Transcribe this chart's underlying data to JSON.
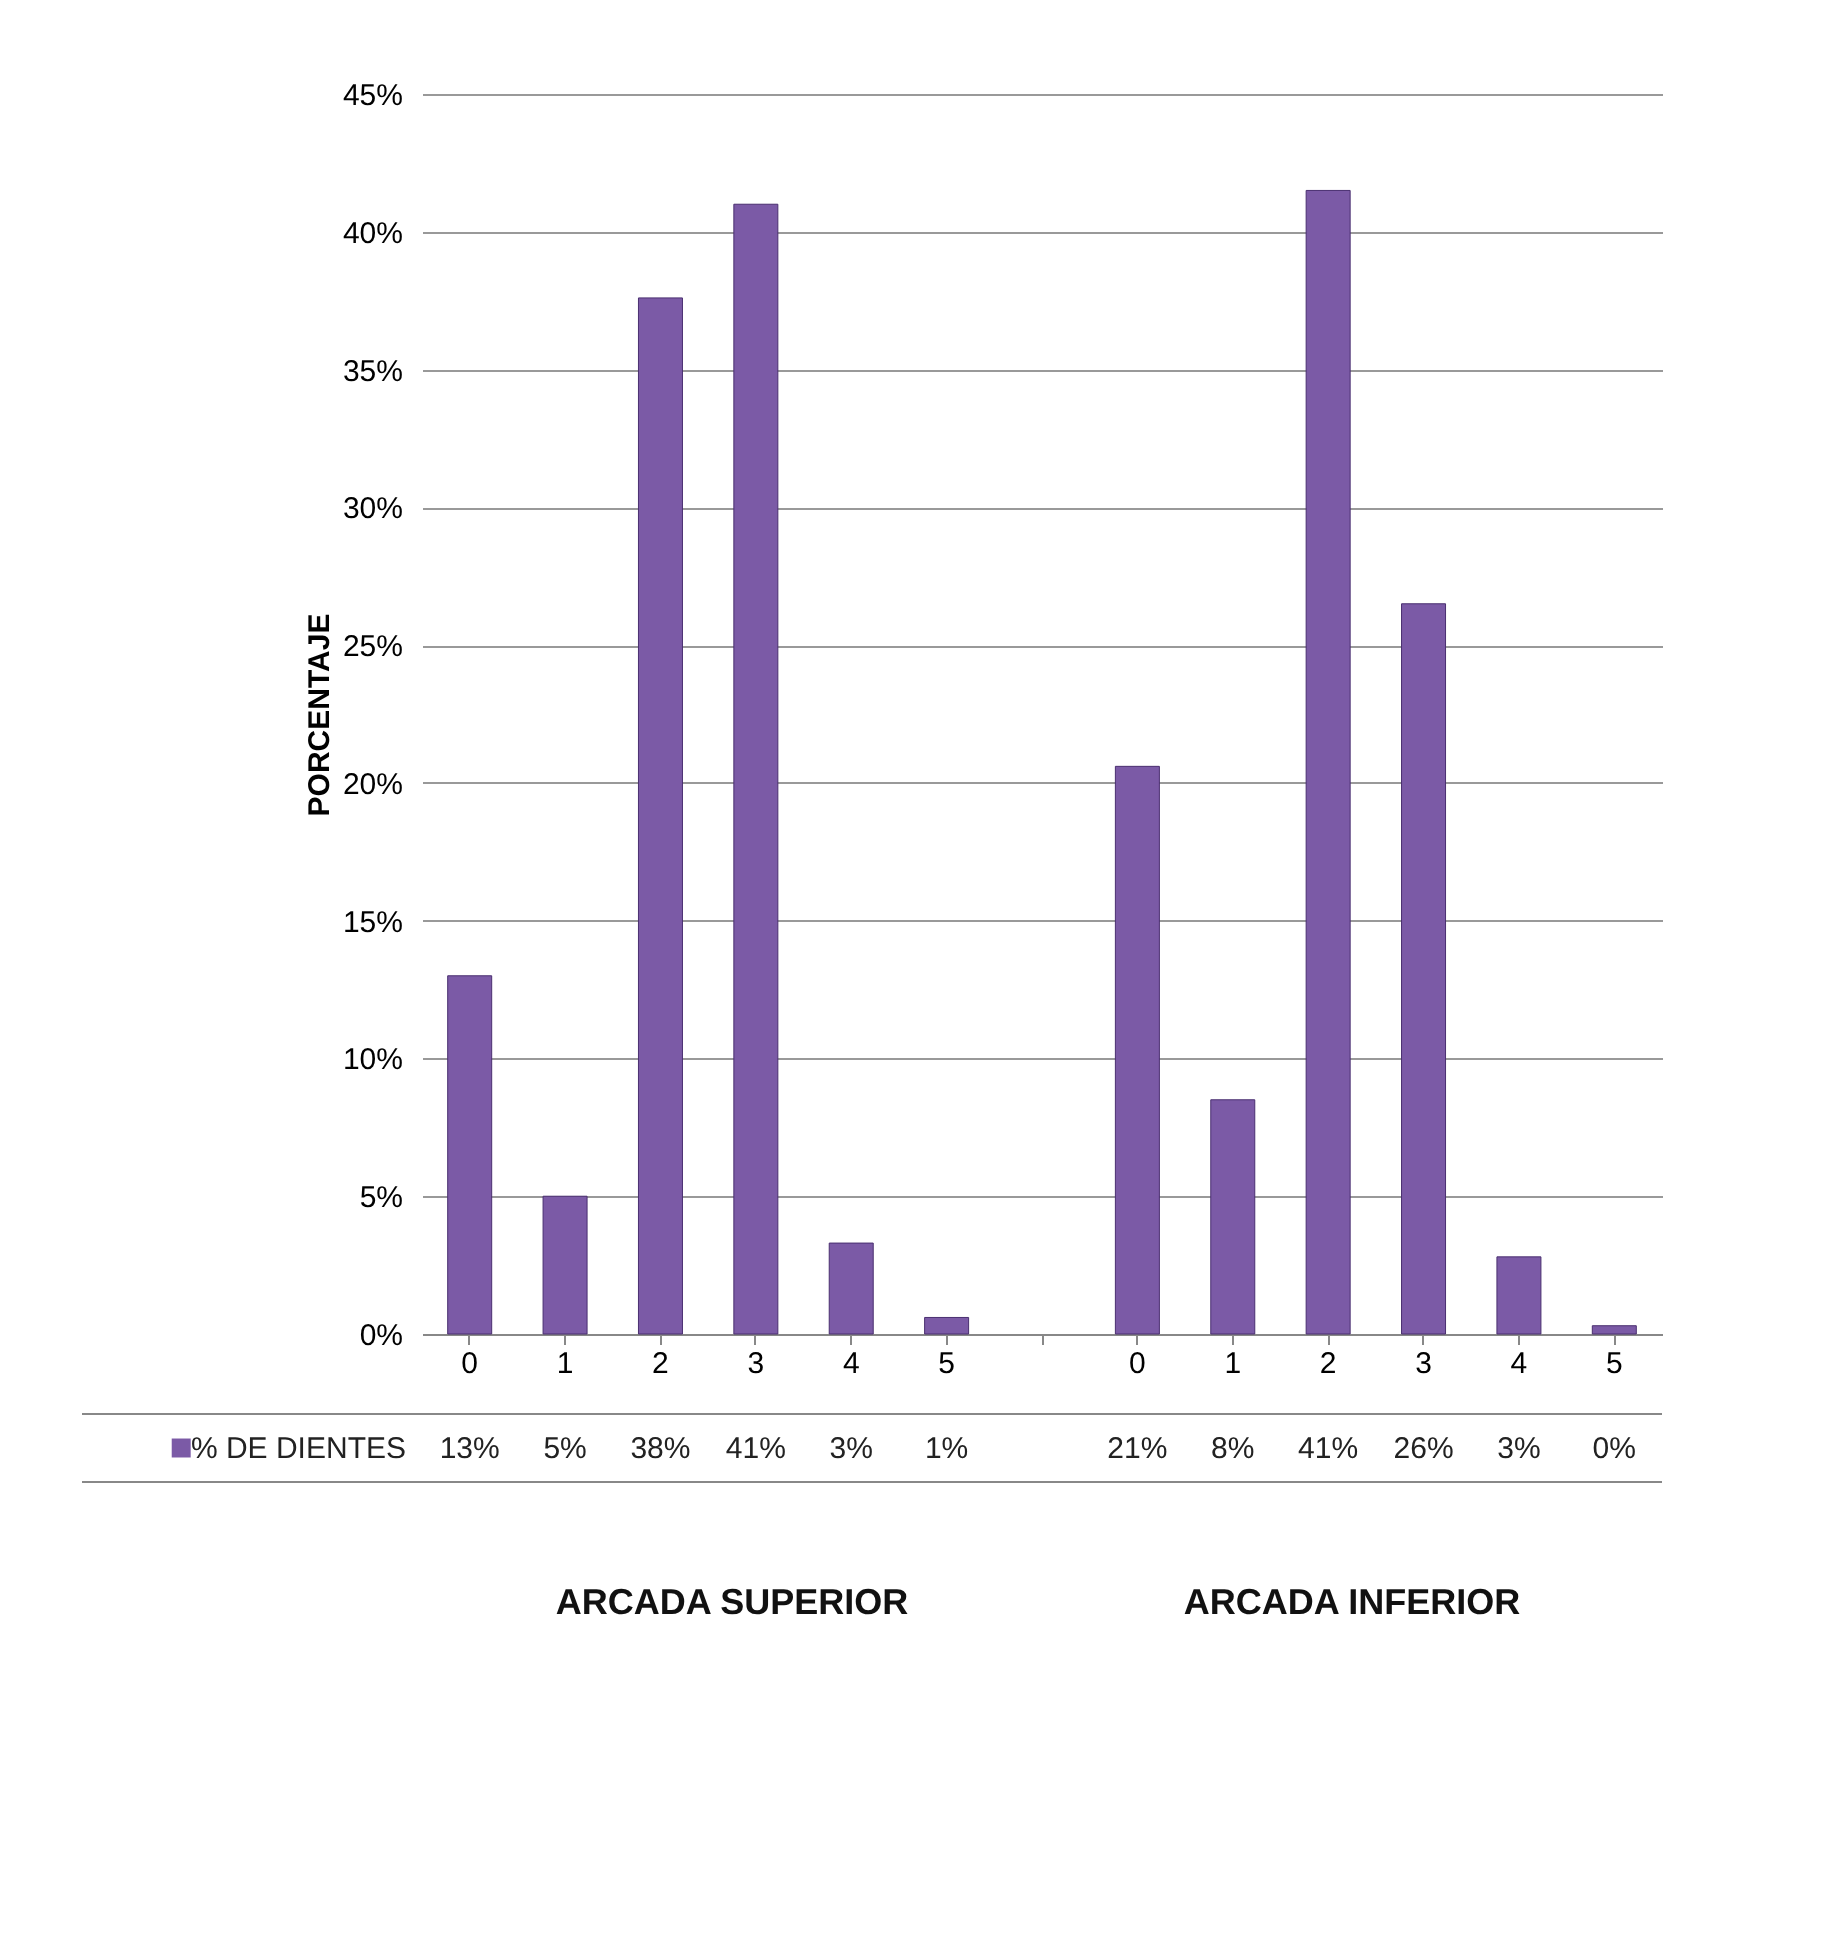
{
  "chart_data": {
    "type": "bar",
    "ylabel": "PORCENTAJE",
    "categories": [
      "0",
      "1",
      "2",
      "3",
      "4",
      "5",
      null,
      "0",
      "1",
      "2",
      "3",
      "4",
      "5"
    ],
    "series": [
      {
        "name": "% DE DIENTES",
        "color": "#7b5aa6",
        "values": [
          13,
          5,
          37.6,
          41,
          3.3,
          0.6,
          null,
          20.6,
          8.5,
          41.5,
          26.5,
          2.8,
          0.3
        ],
        "value_labels": [
          "13%",
          "5%",
          "38%",
          "41%",
          "3%",
          "1%",
          null,
          "21%",
          "8%",
          "41%",
          "26%",
          "3%",
          "0%"
        ]
      }
    ],
    "ylim": [
      0,
      45
    ],
    "yticks": [
      {
        "value": 0,
        "label": "0%"
      },
      {
        "value": 5,
        "label": "5%"
      },
      {
        "value": 10,
        "label": "10%"
      },
      {
        "value": 15,
        "label": "15%"
      },
      {
        "value": 20,
        "label": "20%"
      },
      {
        "value": 25,
        "label": "25%"
      },
      {
        "value": 30,
        "label": "30%"
      },
      {
        "value": 35,
        "label": "35%"
      },
      {
        "value": 40,
        "label": "40%"
      },
      {
        "value": 45,
        "label": "45%"
      }
    ],
    "grid": "y",
    "legend": "bottom",
    "annotations": [
      "ARCADA  SUPERIOR",
      "ARCADA INFERIOR"
    ]
  }
}
